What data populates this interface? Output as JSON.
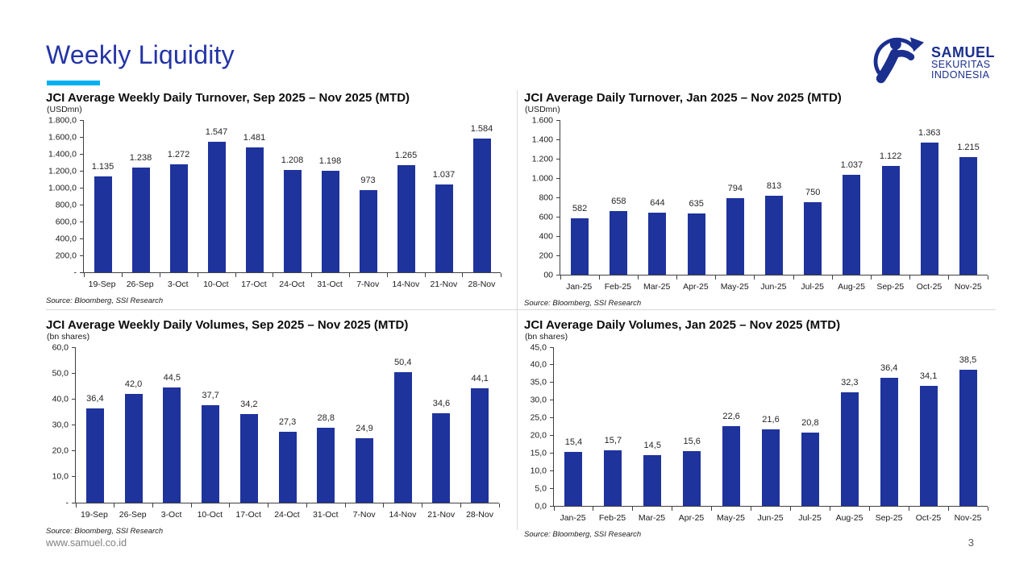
{
  "page": {
    "title": "Weekly Liquidity",
    "website": "www.samuel.co.id",
    "page_number": "3",
    "accent_color": "#00b0f0",
    "title_color": "#2334a6",
    "bar_color": "#1e339c",
    "logo_color": "#1b2f8f"
  },
  "logo": {
    "line1": "SAMUEL",
    "line2": "SEKURITAS",
    "line3": "INDONESIA"
  },
  "chart_data": [
    {
      "type": "bar",
      "title": "JCI Average Weekly Daily Turnover, Sep 2025 – Nov 2025 (MTD)",
      "unit": "(USDmn)",
      "source": "Source: Bloomberg, SSI Research",
      "categories": [
        "19-Sep",
        "26-Sep",
        "3-Oct",
        "10-Oct",
        "17-Oct",
        "24-Oct",
        "31-Oct",
        "7-Nov",
        "14-Nov",
        "21-Nov",
        "28-Nov"
      ],
      "values": [
        1135,
        1238,
        1272,
        1547,
        1481,
        1208,
        1198,
        973,
        1265,
        1037,
        1584
      ],
      "value_labels": [
        "1.135",
        "1.238",
        "1.272",
        "1.547",
        "1.481",
        "1.208",
        "1.198",
        "973",
        "1.265",
        "1.037",
        "1.584"
      ],
      "y_ticks": [
        "1.800,0",
        "1.600,0",
        "1.400,0",
        "1.200,0",
        "1.000,0",
        "800,0",
        "600,0",
        "400,0",
        "200,0",
        "-"
      ],
      "ylim": [
        0,
        1800
      ],
      "xlabel": "",
      "ylabel": "USDmn",
      "grid": false,
      "legend": "none"
    },
    {
      "type": "bar",
      "title": "JCI Average Daily Turnover, Jan 2025 – Nov 2025 (MTD)",
      "unit": "(USDmn)",
      "source": "Source: Bloomberg, SSI Research",
      "categories": [
        "Jan-25",
        "Feb-25",
        "Mar-25",
        "Apr-25",
        "May-25",
        "Jun-25",
        "Jul-25",
        "Aug-25",
        "Sep-25",
        "Oct-25",
        "Nov-25"
      ],
      "values": [
        582,
        658,
        644,
        635,
        794,
        813,
        750,
        1037,
        1122,
        1363,
        1215
      ],
      "value_labels": [
        "582",
        "658",
        "644",
        "635",
        "794",
        "813",
        "750",
        "1.037",
        "1.122",
        "1.363",
        "1.215"
      ],
      "y_ticks": [
        "1.600",
        "1.400",
        "1.200",
        "1.000",
        "800",
        "600",
        "400",
        "200",
        "00"
      ],
      "ylim": [
        0,
        1600
      ],
      "xlabel": "",
      "ylabel": "USDmn",
      "grid": false,
      "legend": "none"
    },
    {
      "type": "bar",
      "title": "JCI Average Weekly Daily Volumes, Sep 2025 – Nov 2025 (MTD)",
      "unit": "(bn shares)",
      "source": "Source: Bloomberg, SSI Research",
      "categories": [
        "19-Sep",
        "26-Sep",
        "3-Oct",
        "10-Oct",
        "17-Oct",
        "24-Oct",
        "31-Oct",
        "7-Nov",
        "14-Nov",
        "21-Nov",
        "28-Nov"
      ],
      "values": [
        36.4,
        42.0,
        44.5,
        37.7,
        34.2,
        27.3,
        28.8,
        24.9,
        50.4,
        34.6,
        44.1
      ],
      "value_labels": [
        "36,4",
        "42,0",
        "44,5",
        "37,7",
        "34,2",
        "27,3",
        "28,8",
        "24,9",
        "50,4",
        "34,6",
        "44,1"
      ],
      "y_ticks": [
        "60,0",
        "50,0",
        "40,0",
        "30,0",
        "20,0",
        "10,0",
        "-"
      ],
      "ylim": [
        0,
        60
      ],
      "xlabel": "",
      "ylabel": "bn shares",
      "grid": false,
      "legend": "none"
    },
    {
      "type": "bar",
      "title": "JCI Average Daily Volumes, Jan 2025 – Nov 2025 (MTD)",
      "unit": "(bn shares)",
      "source": "Source: Bloomberg, SSI Research",
      "categories": [
        "Jan-25",
        "Feb-25",
        "Mar-25",
        "Apr-25",
        "May-25",
        "Jun-25",
        "Jul-25",
        "Aug-25",
        "Sep-25",
        "Oct-25",
        "Nov-25"
      ],
      "values": [
        15.4,
        15.7,
        14.5,
        15.6,
        22.6,
        21.6,
        20.8,
        32.3,
        36.4,
        34.1,
        38.5
      ],
      "value_labels": [
        "15,4",
        "15,7",
        "14,5",
        "15,6",
        "22,6",
        "21,6",
        "20,8",
        "32,3",
        "36,4",
        "34,1",
        "38,5"
      ],
      "y_ticks": [
        "45,0",
        "40,0",
        "35,0",
        "30,0",
        "25,0",
        "20,0",
        "15,0",
        "10,0",
        "5,0",
        "0,0"
      ],
      "ylim": [
        0,
        45
      ],
      "xlabel": "",
      "ylabel": "bn shares",
      "grid": false,
      "legend": "none"
    }
  ]
}
